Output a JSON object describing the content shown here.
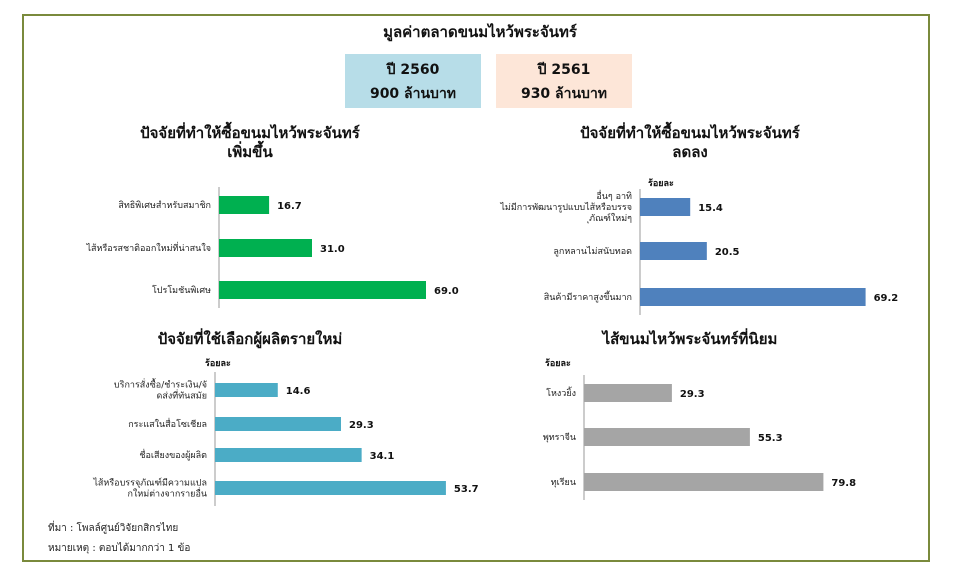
{
  "title": "มูลค่าตลาดขนมไหว้พระจันทร์",
  "years": [
    {
      "year": "ปี 2560",
      "value": "900 ล้านบาท",
      "color": "#b7dde8"
    },
    {
      "year": "ปี 2561",
      "value": "930 ล้านบาท",
      "color": "#fde6d8"
    }
  ],
  "footer": {
    "source": "ที่มา : โพลล์ศูนย์วิจัยกสิกรไทย",
    "note": "หมายเหตุ : ตอบได้มากกว่า 1 ข้อ"
  },
  "chart_data": [
    {
      "type": "bar",
      "orientation": "horizontal",
      "title": "ปัจจัยที่ทำให้ซื้อขนมไหว้พระจันทร์เพิ่มขึ้น",
      "title_lines": [
        "ปัจจัยที่ทำให้ซื้อขนมไหว้พระจันทร์",
        "เพิ่มขึ้น"
      ],
      "unit": "",
      "color": "#00b050",
      "categories": [
        "สิทธิพิเศษสำหรับสมาชิก",
        "ไส้หรือรสชาติออกใหม่ที่น่าสนใจ",
        "โปรโมชันพิเศษ"
      ],
      "values": [
        16.7,
        31.0,
        69.0
      ],
      "labels": [
        "16.7",
        "31.0",
        "69.0"
      ]
    },
    {
      "type": "bar",
      "orientation": "horizontal",
      "title": "ปัจจัยที่ทำให้ซื้อขนมไหว้พระจันทร์ลดลง",
      "title_lines": [
        "ปัจจัยที่ทำให้ซื้อขนมไหว้พระจันทร์",
        "ลดลง"
      ],
      "unit": "ร้อยละ",
      "color": "#4f81bd",
      "categories": [
        "อื่นๆ อาทิ ไม่มีการพัฒนารูปแบบไส้หรือบรรจุภัณฑ์ใหม่ๆ",
        "ลูกหลานไม่สนับทอด",
        "สินค้ามีราคาสูงขึ้นมาก"
      ],
      "values": [
        15.4,
        20.5,
        69.2
      ],
      "labels": [
        "15.4",
        "20.5",
        "69.2"
      ]
    },
    {
      "type": "bar",
      "orientation": "horizontal",
      "title": "ปัจจัยที่ใช้เลือกผู้ผลิตรายใหม่",
      "title_lines": [
        "ปัจจัยที่ใช้เลือกผู้ผลิตรายใหม่"
      ],
      "unit": "ร้อยละ",
      "color": "#4bacc6",
      "categories": [
        "บริการสั่งซื้อ/ชำระเงิน/จัดส่งที่ทันสมัย",
        "กระแสในสื่อโซเชียล",
        "ชื่อเสียงของผู้ผลิต",
        "ไส้หรือบรรจุภัณฑ์มีความแปลกใหม่ต่างจากรายอื่น"
      ],
      "values": [
        14.6,
        29.3,
        34.1,
        53.7
      ],
      "labels": [
        "14.6",
        "29.3",
        "34.1",
        "53.7"
      ]
    },
    {
      "type": "bar",
      "orientation": "horizontal",
      "title": "ไส้ขนมไหว้พระจันทร์ที่นิยม",
      "title_lines": [
        "ไส้ขนมไหว้พระจันทร์ที่นิยม"
      ],
      "unit": "ร้อยละ",
      "color": "#a5a5a5",
      "categories": [
        "โหงวยิ้ง",
        "พุทราจีน",
        "ทุเรียน"
      ],
      "values": [
        29.3,
        55.3,
        79.8
      ],
      "labels": [
        "29.3",
        "55.3",
        "79.8"
      ]
    }
  ]
}
